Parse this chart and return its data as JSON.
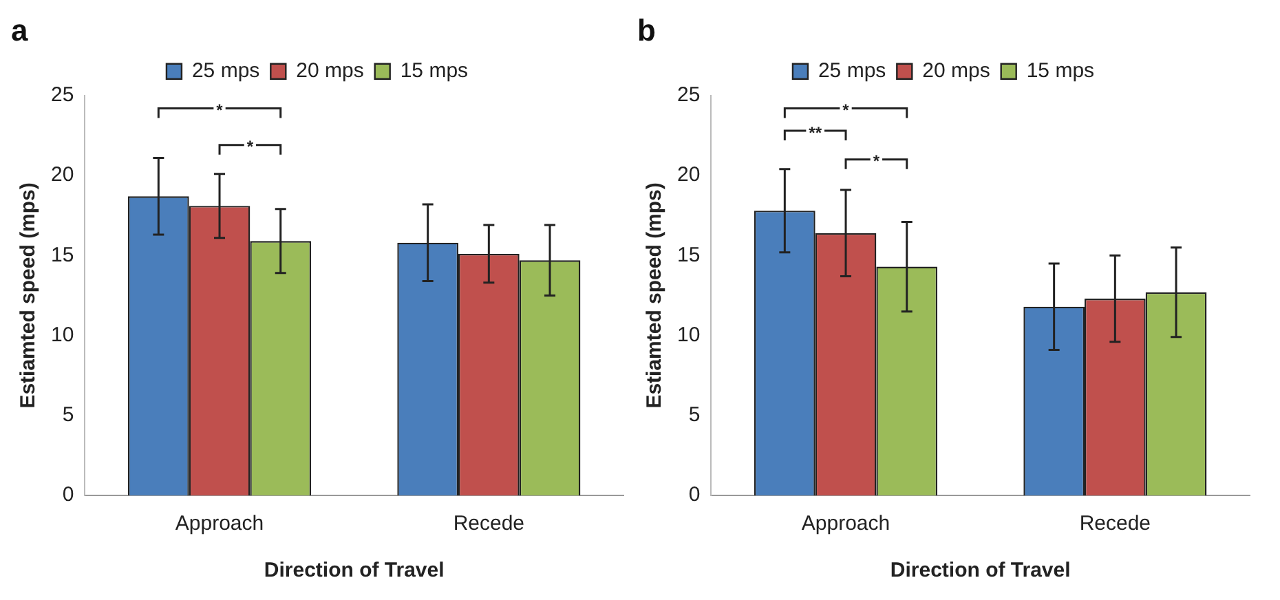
{
  "chart_data": [
    {
      "type": "bar",
      "title": "a",
      "xlabel": "Direction of Travel",
      "ylabel": "Estiamted speed (mps)",
      "categories": [
        "Approach",
        "Recede"
      ],
      "series": [
        {
          "name": "25 mps",
          "color": "#4a7ebb",
          "values": [
            18.7,
            15.8
          ],
          "errors": [
            2.4,
            2.4
          ]
        },
        {
          "name": "20 mps",
          "color": "#c0504d",
          "values": [
            18.1,
            15.1
          ],
          "errors": [
            2.0,
            1.8
          ]
        },
        {
          "name": "15 mps",
          "color": "#9bbb59",
          "values": [
            15.9,
            14.7
          ],
          "errors": [
            2.0,
            2.2
          ]
        }
      ],
      "ylim": [
        0,
        25
      ],
      "yticks": [
        0,
        5,
        10,
        15,
        20,
        25
      ],
      "grid": false,
      "legend": "top",
      "annotations": [
        "*",
        "*"
      ]
    },
    {
      "type": "bar",
      "title": "b",
      "xlabel": "Direction of Travel",
      "ylabel": "Estiamted speed (mps)",
      "categories": [
        "Approach",
        "Recede"
      ],
      "series": [
        {
          "name": "25 mps",
          "color": "#4a7ebb",
          "values": [
            17.8,
            11.8
          ],
          "errors": [
            2.6,
            2.7
          ]
        },
        {
          "name": "20 mps",
          "color": "#c0504d",
          "values": [
            16.4,
            12.3
          ],
          "errors": [
            2.7,
            2.7
          ]
        },
        {
          "name": "15 mps",
          "color": "#9bbb59",
          "values": [
            14.3,
            12.7
          ],
          "errors": [
            2.8,
            2.8
          ]
        }
      ],
      "ylim": [
        0,
        25
      ],
      "yticks": [
        0,
        5,
        10,
        15,
        20,
        25
      ],
      "grid": false,
      "legend": "top",
      "annotations": [
        "*",
        "**",
        "*"
      ]
    }
  ]
}
